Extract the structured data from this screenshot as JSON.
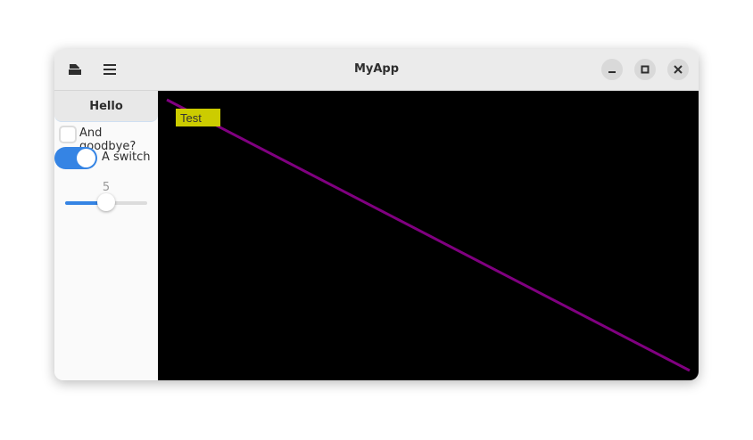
{
  "window": {
    "title": "MyApp"
  },
  "header": {
    "left_icons": [
      "document-open-icon",
      "hamburger-menu-icon"
    ],
    "controls": [
      "minimize-icon",
      "maximize-icon",
      "close-icon"
    ]
  },
  "sidebar": {
    "button_label": "Hello",
    "checkbox": {
      "label": "And goodbye?",
      "checked": false
    },
    "switch": {
      "label": "A switch",
      "on": true
    },
    "slider": {
      "value": 5,
      "value_label": "5",
      "min": 0,
      "max": 10
    }
  },
  "canvas": {
    "background": "#000000",
    "line_color": "#800080",
    "label": {
      "text": "Test",
      "background": "#cccc00"
    }
  },
  "colors": {
    "accent": "#3584e4"
  }
}
